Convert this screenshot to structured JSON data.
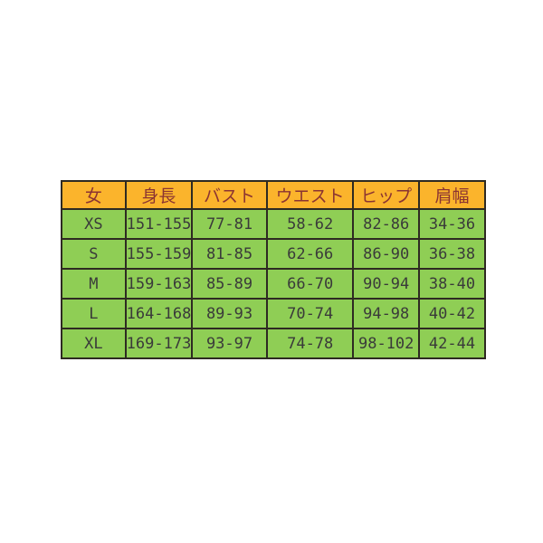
{
  "page": {
    "background_color": "#ffffff"
  },
  "colors": {
    "header_bg": "#fbb42c",
    "header_text": "#8b3432",
    "body_bg": "#8fce55",
    "body_text": "#3a3a3a",
    "border": "#2e2a22"
  },
  "chart_data": {
    "type": "table",
    "title": "",
    "columns": [
      "女",
      "身長",
      "バスト",
      "ウエスト",
      "ヒップ",
      "肩幅"
    ],
    "rows": [
      [
        "XS",
        "151-155",
        "77-81",
        "58-62",
        "82-86",
        "34-36"
      ],
      [
        "S",
        "155-159",
        "81-85",
        "62-66",
        "86-90",
        "36-38"
      ],
      [
        "M",
        "159-163",
        "85-89",
        "66-70",
        "90-94",
        "38-40"
      ],
      [
        "L",
        "164-168",
        "89-93",
        "70-74",
        "94-98",
        "40-42"
      ],
      [
        "XL",
        "169-173",
        "93-97",
        "74-78",
        "98-102",
        "42-44"
      ]
    ]
  }
}
